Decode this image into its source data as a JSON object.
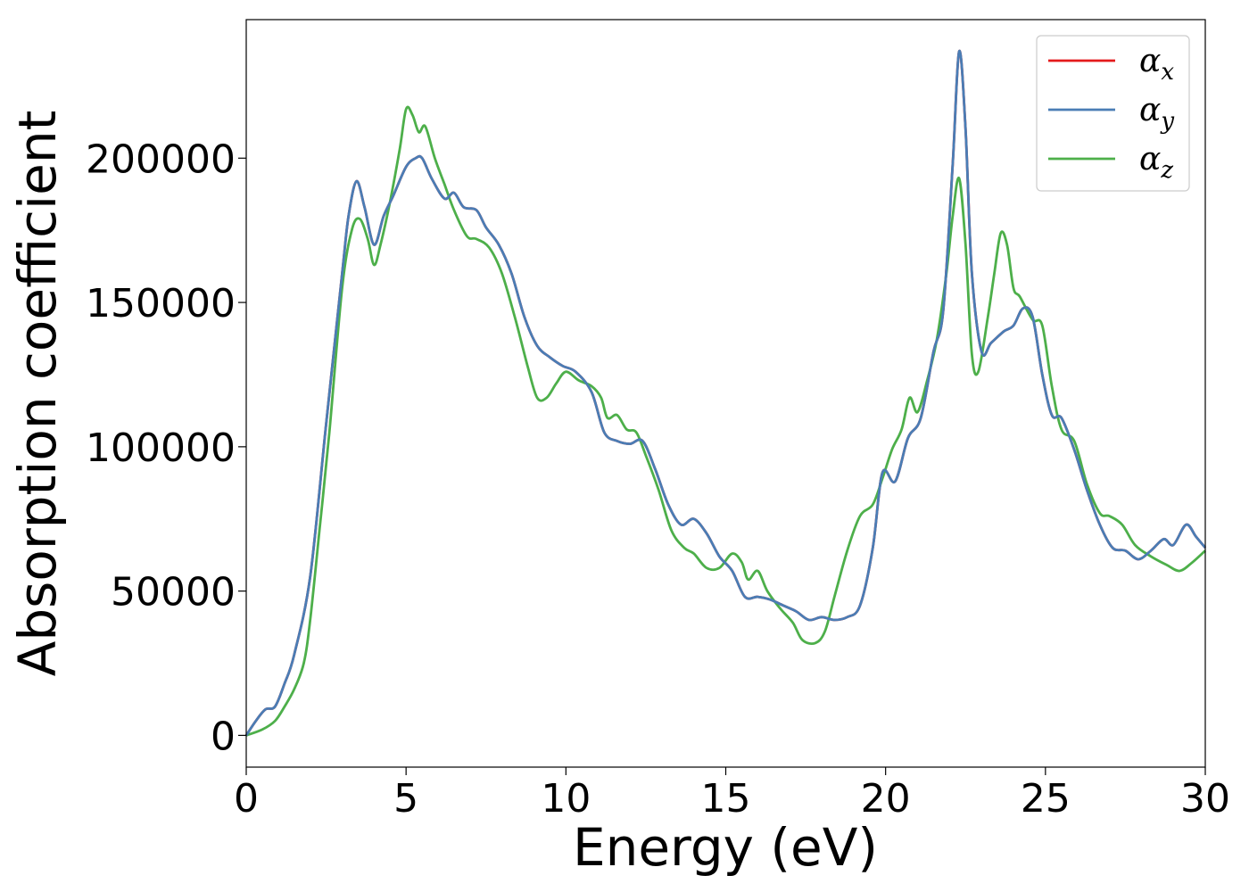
{
  "chart_data": {
    "type": "line",
    "xlabel": "Energy (eV)",
    "ylabel": "Absorption coefficient",
    "xlim": [
      0,
      30
    ],
    "ylim": [
      -11000,
      248000
    ],
    "xticks": [
      0,
      5,
      10,
      15,
      20,
      25,
      30
    ],
    "yticks": [
      0,
      50000,
      100000,
      150000,
      200000
    ],
    "grid": false,
    "legend_position": "top-right",
    "series": [
      {
        "name": "α",
        "sub": "x",
        "color": "#e41a1c",
        "x": [
          0,
          0.3,
          0.6,
          0.9,
          1.2,
          1.5,
          2.0,
          2.5,
          3.0,
          3.2,
          3.45,
          3.7,
          4.0,
          4.3,
          4.6,
          5.0,
          5.3,
          5.5,
          5.8,
          6.2,
          6.5,
          6.8,
          7.2,
          7.5,
          7.9,
          8.3,
          8.7,
          9.1,
          9.5,
          9.9,
          10.3,
          10.8,
          11.2,
          11.6,
          12.0,
          12.4,
          12.8,
          13.2,
          13.6,
          14.0,
          14.4,
          14.8,
          15.2,
          15.6,
          16.0,
          16.4,
          16.8,
          17.2,
          17.6,
          18.0,
          18.4,
          18.8,
          19.2,
          19.6,
          19.9,
          20.3,
          20.7,
          21.1,
          21.5,
          21.8,
          22.1,
          22.3,
          22.5,
          22.7,
          23.0,
          23.3,
          23.7,
          24.0,
          24.3,
          24.6,
          24.9,
          25.2,
          25.5,
          25.9,
          26.3,
          26.7,
          27.1,
          27.5,
          27.9,
          28.3,
          28.7,
          29.0,
          29.4,
          29.7,
          30.0
        ],
        "y": [
          0,
          5000,
          9000,
          10000,
          18000,
          28000,
          55000,
          108000,
          160000,
          180000,
          192000,
          183000,
          170000,
          180000,
          187000,
          197000,
          200000,
          200000,
          193000,
          186000,
          188000,
          183000,
          182000,
          176000,
          170000,
          160000,
          145000,
          135000,
          131000,
          128000,
          126000,
          119000,
          105000,
          102000,
          101000,
          102000,
          92000,
          80000,
          73000,
          75000,
          70000,
          62000,
          57000,
          48000,
          48000,
          47000,
          45000,
          43000,
          40000,
          41000,
          40000,
          41000,
          45000,
          65000,
          91000,
          88000,
          103000,
          110000,
          133000,
          147000,
          198000,
          237000,
          210000,
          160000,
          133000,
          136000,
          140000,
          142000,
          148000,
          145000,
          125000,
          111000,
          110000,
          99000,
          85000,
          73000,
          65000,
          64000,
          61000,
          64000,
          68000,
          66000,
          73000,
          69000,
          65000
        ]
      },
      {
        "name": "α",
        "sub": "y",
        "color": "#4a7db5",
        "x": [
          0,
          0.3,
          0.6,
          0.9,
          1.2,
          1.5,
          2.0,
          2.5,
          3.0,
          3.2,
          3.45,
          3.7,
          4.0,
          4.3,
          4.6,
          5.0,
          5.3,
          5.5,
          5.8,
          6.2,
          6.5,
          6.8,
          7.2,
          7.5,
          7.9,
          8.3,
          8.7,
          9.1,
          9.5,
          9.9,
          10.3,
          10.8,
          11.2,
          11.6,
          12.0,
          12.4,
          12.8,
          13.2,
          13.6,
          14.0,
          14.4,
          14.8,
          15.2,
          15.6,
          16.0,
          16.4,
          16.8,
          17.2,
          17.6,
          18.0,
          18.4,
          18.8,
          19.2,
          19.6,
          19.9,
          20.3,
          20.7,
          21.1,
          21.5,
          21.8,
          22.1,
          22.3,
          22.5,
          22.7,
          23.0,
          23.3,
          23.7,
          24.0,
          24.3,
          24.6,
          24.9,
          25.2,
          25.5,
          25.9,
          26.3,
          26.7,
          27.1,
          27.5,
          27.9,
          28.3,
          28.7,
          29.0,
          29.4,
          29.7,
          30.0
        ],
        "y": [
          0,
          5000,
          9000,
          10000,
          18000,
          28000,
          55000,
          108000,
          160000,
          180000,
          192000,
          183000,
          170000,
          180000,
          187000,
          197000,
          200000,
          200000,
          193000,
          186000,
          188000,
          183000,
          182000,
          176000,
          170000,
          160000,
          145000,
          135000,
          131000,
          128000,
          126000,
          119000,
          105000,
          102000,
          101000,
          102000,
          92000,
          80000,
          73000,
          75000,
          70000,
          62000,
          57000,
          48000,
          48000,
          47000,
          45000,
          43000,
          40000,
          41000,
          40000,
          41000,
          45000,
          65000,
          91000,
          88000,
          103000,
          110000,
          133000,
          147000,
          198000,
          237000,
          210000,
          160000,
          133000,
          136000,
          140000,
          142000,
          148000,
          145000,
          125000,
          111000,
          110000,
          99000,
          85000,
          73000,
          65000,
          64000,
          61000,
          64000,
          68000,
          66000,
          73000,
          69000,
          65000
        ]
      },
      {
        "name": "α",
        "sub": "z",
        "color": "#4daf4a",
        "x": [
          0,
          0.5,
          0.9,
          1.2,
          1.5,
          1.8,
          2.0,
          2.3,
          2.6,
          3.0,
          3.3,
          3.55,
          3.8,
          4.0,
          4.2,
          4.5,
          4.8,
          5.0,
          5.2,
          5.4,
          5.6,
          5.9,
          6.2,
          6.5,
          6.9,
          7.2,
          7.6,
          8.0,
          8.4,
          8.8,
          9.1,
          9.4,
          9.7,
          10.0,
          10.4,
          10.8,
          11.1,
          11.3,
          11.6,
          11.9,
          12.2,
          12.5,
          12.9,
          13.3,
          13.7,
          14.0,
          14.4,
          14.8,
          15.2,
          15.5,
          15.7,
          16.0,
          16.3,
          16.7,
          17.1,
          17.4,
          17.8,
          18.1,
          18.4,
          18.8,
          19.2,
          19.6,
          19.9,
          20.2,
          20.5,
          20.75,
          21.0,
          21.3,
          21.6,
          21.9,
          22.1,
          22.3,
          22.5,
          22.7,
          22.9,
          23.2,
          23.4,
          23.6,
          23.8,
          24.0,
          24.2,
          24.6,
          24.9,
          25.2,
          25.5,
          25.9,
          26.3,
          26.7,
          27.0,
          27.4,
          27.8,
          28.3,
          28.8,
          29.2,
          29.6,
          30.0
        ],
        "y": [
          0,
          2000,
          5000,
          10000,
          16000,
          25000,
          40000,
          72000,
          105000,
          155000,
          175000,
          179000,
          172000,
          163000,
          170000,
          185000,
          203000,
          217000,
          215000,
          209000,
          211000,
          200000,
          191000,
          182000,
          173000,
          172000,
          169000,
          160000,
          145000,
          128000,
          117000,
          117000,
          122000,
          126000,
          123000,
          121000,
          117000,
          110000,
          111000,
          106000,
          105000,
          97000,
          85000,
          71000,
          65000,
          63000,
          58000,
          58000,
          63000,
          60000,
          54000,
          57000,
          50000,
          44000,
          39000,
          33000,
          32000,
          36000,
          48000,
          64000,
          76000,
          80000,
          89000,
          99000,
          106000,
          117000,
          112000,
          123000,
          137000,
          160000,
          180000,
          193000,
          170000,
          132000,
          126000,
          145000,
          160000,
          174000,
          170000,
          155000,
          152000,
          144000,
          142000,
          121000,
          106000,
          102000,
          87000,
          77000,
          76000,
          73000,
          66000,
          62000,
          59000,
          57000,
          60000,
          64000
        ]
      }
    ]
  }
}
